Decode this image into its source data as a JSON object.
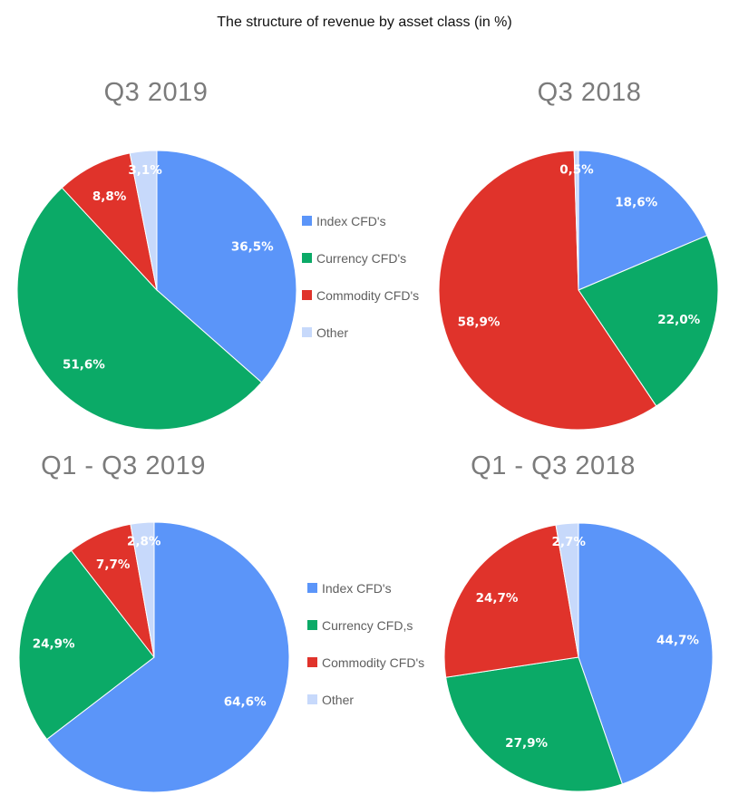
{
  "title": "The structure of revenue by asset class (in %)",
  "colors": {
    "index": "#5b95f9",
    "currency": "#0baa67",
    "commodity": "#e0332b",
    "other": "#c7d9fb"
  },
  "legends": [
    {
      "items": [
        {
          "label": "Index CFD's",
          "color": "#5b95f9"
        },
        {
          "label": "Currency CFD's",
          "color": "#0baa67"
        },
        {
          "label": "Commodity CFD's",
          "color": "#e0332b"
        },
        {
          "label": "Other",
          "color": "#c7d9fb"
        }
      ]
    },
    {
      "items": [
        {
          "label": "Index CFD's",
          "color": "#5b95f9"
        },
        {
          "label": "Currency CFD,s",
          "color": "#0baa67"
        },
        {
          "label": "Commodity CFD's",
          "color": "#e0332b"
        },
        {
          "label": "Other",
          "color": "#c7d9fb"
        }
      ]
    }
  ],
  "chart_data": [
    {
      "type": "pie",
      "title": "Q3 2019",
      "categories": [
        "Index CFD's",
        "Currency CFD's",
        "Commodity CFD's",
        "Other"
      ],
      "values": [
        36.5,
        51.6,
        8.8,
        3.1
      ],
      "labels": [
        "36,5%",
        "51,6%",
        "8,8%",
        "3,1%"
      ],
      "start_angle_deg": 0,
      "direction": "clockwise",
      "legend": "right"
    },
    {
      "type": "pie",
      "title": "Q3 2018",
      "categories": [
        "Index CFD's",
        "Currency CFD's",
        "Commodity CFD's",
        "Other"
      ],
      "values": [
        18.6,
        22.0,
        58.9,
        0.5
      ],
      "labels": [
        "18,6%",
        "22,0%",
        "58,9%",
        "0,5%"
      ],
      "start_angle_deg": 0,
      "direction": "clockwise",
      "legend": "none"
    },
    {
      "type": "pie",
      "title": "Q1 - Q3 2019",
      "categories": [
        "Index CFD's",
        "Currency CFD,s",
        "Commodity CFD's",
        "Other"
      ],
      "values": [
        64.6,
        24.9,
        7.7,
        2.8
      ],
      "labels": [
        "64,6%",
        "24,9%",
        "7,7%",
        "2,8%"
      ],
      "start_angle_deg": 0,
      "direction": "clockwise",
      "legend": "right"
    },
    {
      "type": "pie",
      "title": "Q1 - Q3 2018",
      "categories": [
        "Index CFD's",
        "Currency CFD's",
        "Commodity CFD's",
        "Other"
      ],
      "values": [
        44.7,
        27.9,
        24.7,
        2.7
      ],
      "labels": [
        "44,7%",
        "27,9%",
        "24,7%",
        "2,7%"
      ],
      "start_angle_deg": 0,
      "direction": "clockwise",
      "legend": "none"
    }
  ]
}
